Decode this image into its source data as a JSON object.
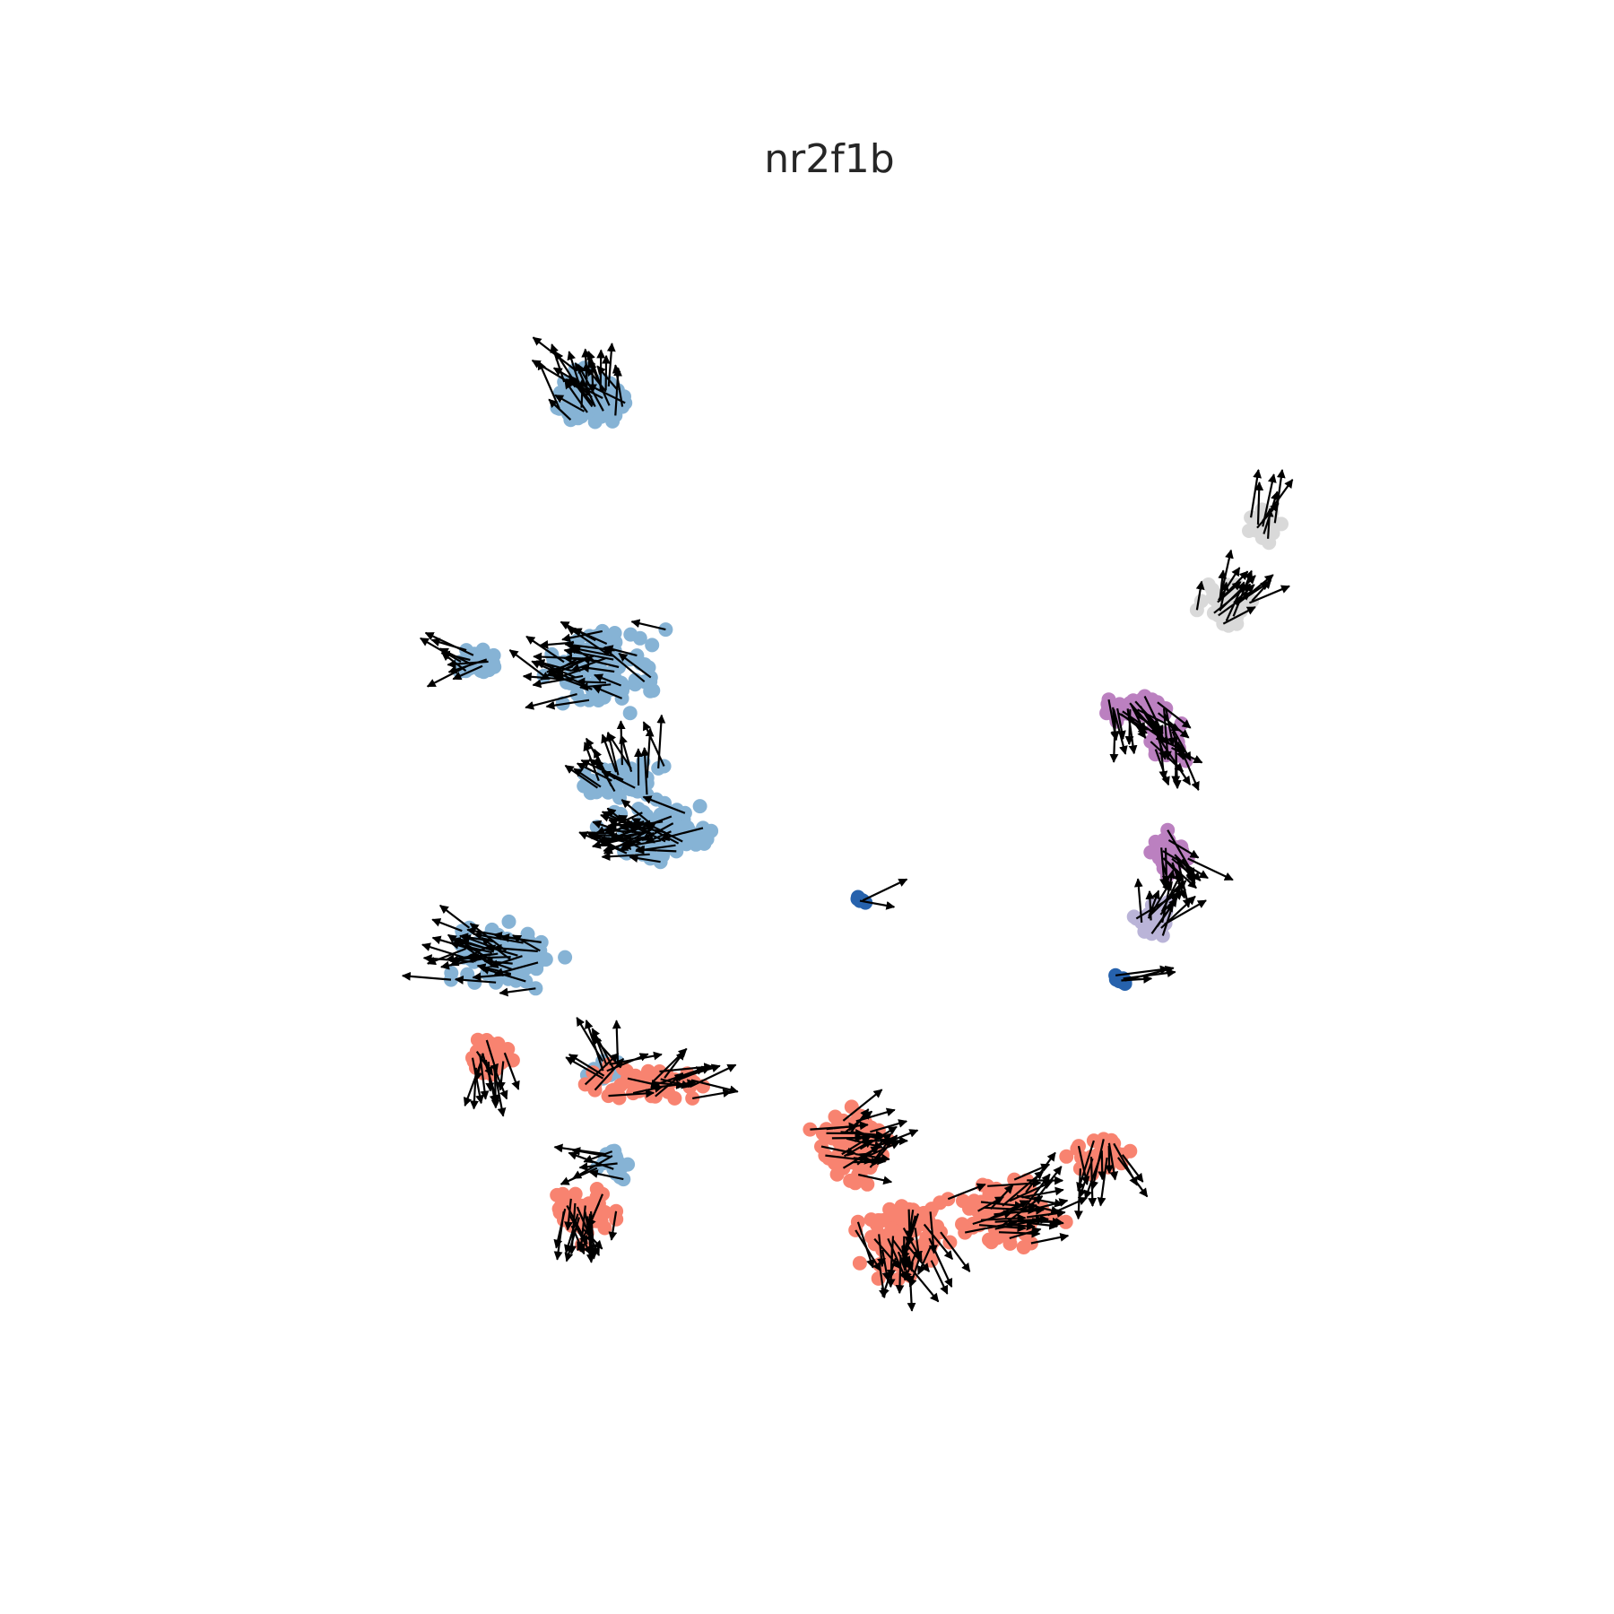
{
  "chart_data": {
    "type": "scatter",
    "title": "nr2f1b",
    "xlabel": "",
    "ylabel": "",
    "axes_visible": false,
    "grid": false,
    "legend": "none",
    "overlay": "velocity-arrows",
    "arrow_color": "#000000",
    "xlim": [
      0,
      100
    ],
    "ylim": [
      0,
      100
    ],
    "groups": [
      {
        "color": "#86b3d5",
        "regions": [
          {
            "cx": 32.0,
            "cy": 83.0,
            "rx": 4.0,
            "ry": 3.5,
            "n": 90
          },
          {
            "cx": 33.0,
            "cy": 62.0,
            "rx": 6.5,
            "ry": 4.5,
            "n": 110
          },
          {
            "cx": 23.0,
            "cy": 62.5,
            "rx": 3.0,
            "ry": 1.8,
            "n": 30
          },
          {
            "cx": 34.0,
            "cy": 53.5,
            "rx": 4.5,
            "ry": 2.5,
            "n": 60
          },
          {
            "cx": 37.0,
            "cy": 49.5,
            "rx": 5.5,
            "ry": 3.5,
            "n": 120
          },
          {
            "cx": 25.0,
            "cy": 40.0,
            "rx": 7.5,
            "ry": 3.5,
            "n": 110
          },
          {
            "cx": 33.0,
            "cy": 31.0,
            "rx": 3.0,
            "ry": 1.2,
            "n": 25
          },
          {
            "cx": 33.5,
            "cy": 24.0,
            "rx": 2.0,
            "ry": 3.0,
            "n": 25
          }
        ]
      },
      {
        "color": "#f88370",
        "regions": [
          {
            "cx": 24.0,
            "cy": 32.0,
            "rx": 2.5,
            "ry": 2.5,
            "n": 45
          },
          {
            "cx": 36.0,
            "cy": 30.0,
            "rx": 8.0,
            "ry": 2.0,
            "n": 60
          },
          {
            "cx": 31.0,
            "cy": 20.0,
            "rx": 3.5,
            "ry": 3.0,
            "n": 60
          },
          {
            "cx": 52.0,
            "cy": 25.0,
            "rx": 4.0,
            "ry": 5.0,
            "n": 90
          },
          {
            "cx": 56.0,
            "cy": 18.0,
            "rx": 5.0,
            "ry": 5.0,
            "n": 100
          },
          {
            "cx": 64.0,
            "cy": 20.0,
            "rx": 6.0,
            "ry": 4.0,
            "n": 110
          },
          {
            "cx": 71.0,
            "cy": 24.5,
            "rx": 4.0,
            "ry": 2.0,
            "n": 40
          }
        ]
      },
      {
        "color": "#bb80c0",
        "regions": [
          {
            "cx": 74.0,
            "cy": 59.0,
            "rx": 4.0,
            "ry": 1.5,
            "n": 80
          },
          {
            "cx": 77.0,
            "cy": 56.5,
            "rx": 2.5,
            "ry": 2.0,
            "n": 30
          },
          {
            "cx": 76.5,
            "cy": 47.5,
            "rx": 2.0,
            "ry": 2.5,
            "n": 45
          }
        ]
      },
      {
        "color": "#bab4d8",
        "regions": [
          {
            "cx": 75.5,
            "cy": 42.5,
            "rx": 2.0,
            "ry": 2.5,
            "n": 40
          }
        ]
      },
      {
        "color": "#d9d9d9",
        "regions": [
          {
            "cx": 81.0,
            "cy": 67.0,
            "rx": 3.0,
            "ry": 3.0,
            "n": 55
          },
          {
            "cx": 84.0,
            "cy": 73.0,
            "rx": 2.0,
            "ry": 2.5,
            "n": 25
          }
        ]
      },
      {
        "color": "#2662ad",
        "regions": [
          {
            "cx": 52.8,
            "cy": 44.2,
            "rx": 0.8,
            "ry": 0.5,
            "n": 6
          },
          {
            "cx": 73.0,
            "cy": 38.0,
            "rx": 1.0,
            "ry": 0.7,
            "n": 10
          }
        ]
      }
    ]
  }
}
